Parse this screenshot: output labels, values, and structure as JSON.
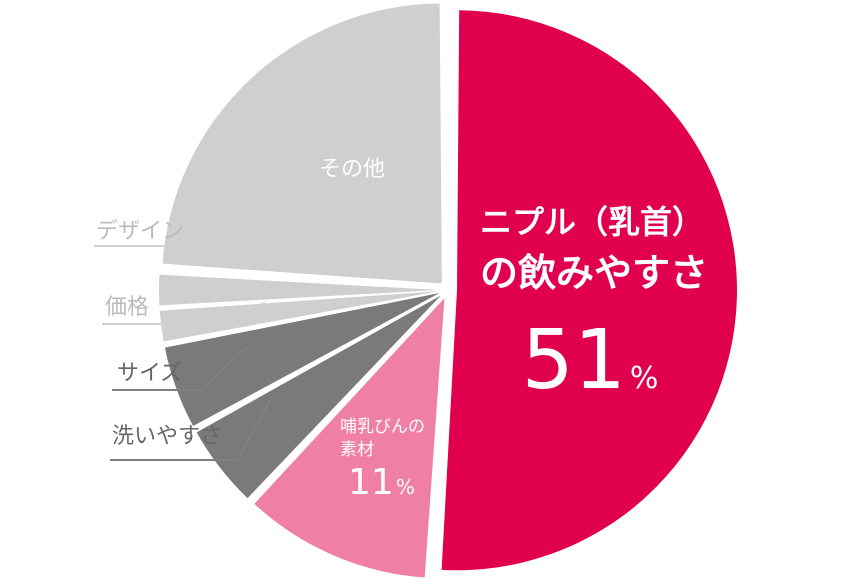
{
  "chart_data": {
    "type": "pie",
    "slices": [
      {
        "label": "ニプル（乳首）の飲みやすさ",
        "value": 51,
        "value_label": "51%",
        "color": "#e0004e"
      },
      {
        "label": "哺乳びんの素材",
        "value": 11,
        "value_label": "11%",
        "color": "#f07fa6"
      },
      {
        "label": "洗いやすさ",
        "value": 5,
        "color": "#7a7a7a"
      },
      {
        "label": "サイズ",
        "value": 5,
        "color": "#7a7a7a"
      },
      {
        "label": "価格",
        "value": 2,
        "color": "#cfcfcf"
      },
      {
        "label": "デザイン",
        "value": 2,
        "color": "#cfcfcf"
      },
      {
        "label": "その他",
        "value": 24,
        "color": "#cfcfcf"
      }
    ],
    "main_label": {
      "line1": "ニプル（乳首）",
      "line2": "の飲みやすさ",
      "number": "51",
      "unit": "%"
    },
    "material_label": {
      "line1": "哺乳びんの",
      "line2": "素材",
      "number": "11",
      "unit": "%"
    },
    "external_labels": {
      "wash": "洗いやすさ",
      "size": "サイズ",
      "price": "価格",
      "design": "デザイン"
    },
    "other_label": "その他"
  }
}
